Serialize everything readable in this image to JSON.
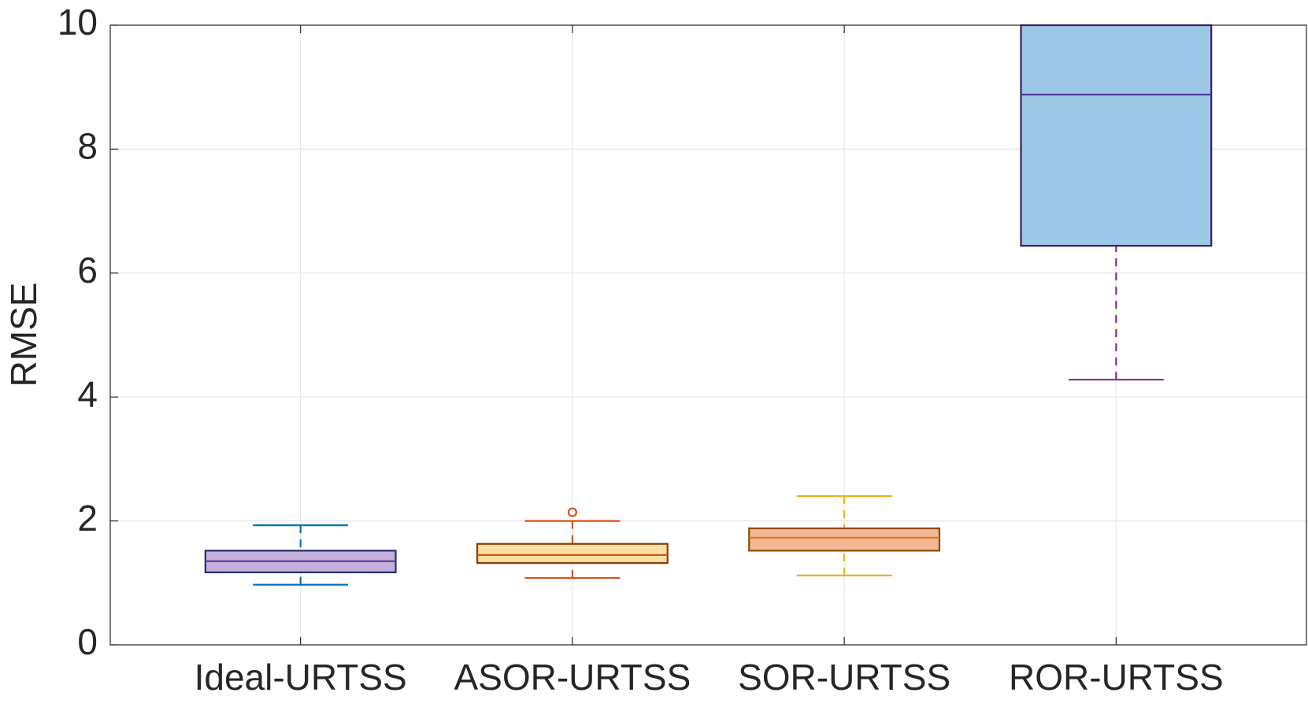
{
  "chart_data": {
    "type": "box",
    "y_label": "RMSE",
    "categories": [
      "Ideal-URTSS",
      "ASOR-URTSS",
      "SOR-URTSS",
      "ROR-URTSS"
    ],
    "boxes": [
      {
        "min": 0.97,
        "q1": 1.17,
        "median": 1.35,
        "q3": 1.52,
        "max": 1.93,
        "outliers": [],
        "fill": "#c7aedb",
        "edge": "#1f2e6e",
        "median_color": "#5a3fa0",
        "whisker_color": "#0072bd"
      },
      {
        "min": 1.08,
        "q1": 1.32,
        "median": 1.45,
        "q3": 1.63,
        "max": 2.0,
        "outliers": [
          2.14
        ],
        "fill": "#fbe0a4",
        "edge": "#8a3c00",
        "median_color": "#d95319",
        "whisker_color": "#d95319"
      },
      {
        "min": 1.12,
        "q1": 1.52,
        "median": 1.73,
        "q3": 1.88,
        "max": 2.4,
        "outliers": [],
        "fill": "#f4b896",
        "edge": "#8a4a00",
        "median_color": "#e0762a",
        "whisker_color": "#edb120"
      },
      {
        "min": 4.28,
        "q1": 6.44,
        "median": 8.88,
        "q3": null,
        "max": null,
        "outliers": [],
        "fill": "#9cc7e6",
        "edge": "#3a1f5e",
        "median_color": "#4a3a9a",
        "whisker_color": "#7e2f8e"
      }
    ],
    "ylim": [
      0,
      10
    ],
    "yticks": [
      0,
      2,
      4,
      6,
      8,
      10
    ],
    "grid": true
  }
}
